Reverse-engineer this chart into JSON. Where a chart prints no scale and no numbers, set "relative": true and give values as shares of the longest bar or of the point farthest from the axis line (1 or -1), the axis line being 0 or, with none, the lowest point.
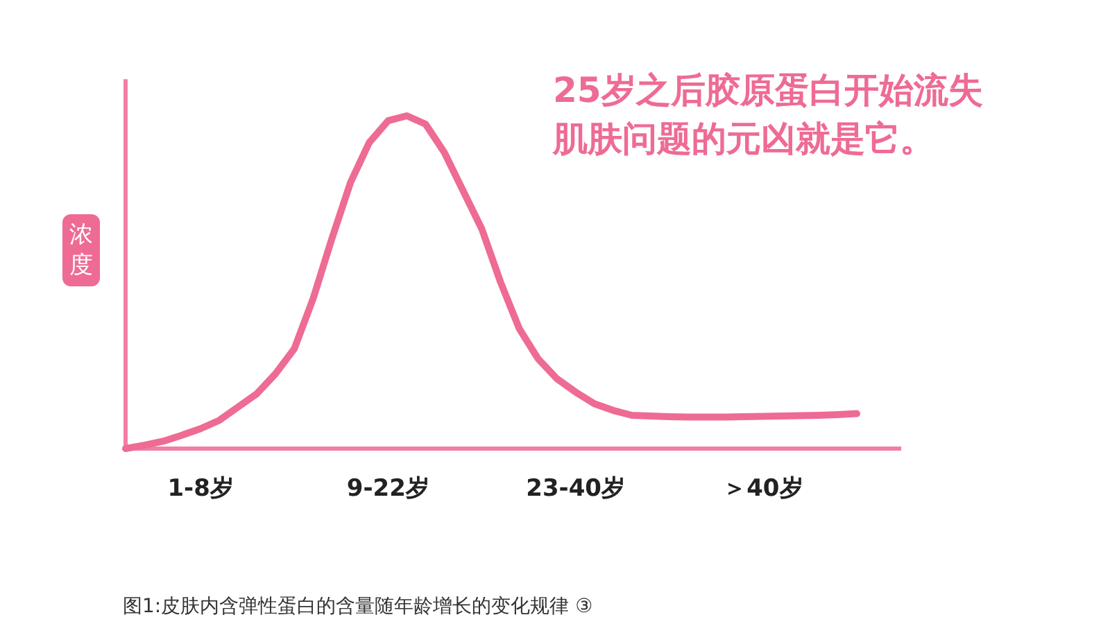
{
  "chart_data": {
    "type": "line",
    "relative": true,
    "title": "25岁之后胶原蛋白开始流失",
    "subtitle": "肌肤问题的元凶就是它。",
    "ylabel": "浓度",
    "annotations": [
      "图1:皮肤内含弹性蛋白的含量随年龄增长的变化规律 ③"
    ],
    "categories": [
      null,
      null,
      null,
      null,
      "1-8岁",
      null,
      null,
      null,
      null,
      null,
      null,
      null,
      null,
      null,
      "9-22岁",
      null,
      null,
      null,
      null,
      null,
      null,
      null,
      null,
      null,
      "23-40岁",
      null,
      null,
      null,
      null,
      null,
      null,
      null,
      null,
      null,
      "＞40岁",
      null,
      null,
      null,
      null,
      null
    ],
    "series": [
      {
        "color": "#ee6b94",
        "values": [
          0,
          0.01,
          0.022,
          0.04,
          0.06,
          0.085,
          0.125,
          0.165,
          0.225,
          0.3,
          0.45,
          0.63,
          0.8,
          0.92,
          0.985,
          1,
          0.975,
          0.89,
          0.775,
          0.66,
          0.5,
          0.36,
          0.27,
          0.21,
          0.17,
          0.135,
          0.115,
          0.1,
          0.098,
          0.096,
          0.095,
          0.095,
          0.095,
          0.096,
          0.097,
          0.098,
          0.099,
          0.1,
          0.102,
          0.105
        ]
      }
    ]
  }
}
